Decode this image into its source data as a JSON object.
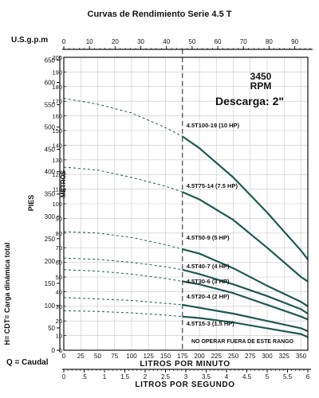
{
  "chart_data": {
    "type": "line",
    "title": "Curvas de Rendimiento Serie 4.5 T",
    "top_axis": {
      "label": "U.S.g.p.m",
      "ticks": [
        "0",
        "10",
        "20",
        "30",
        "40",
        "50",
        "60",
        "70",
        "80",
        "90"
      ],
      "values": [
        0,
        10,
        20,
        30,
        40,
        50,
        60,
        70,
        80,
        90
      ],
      "range": [
        0,
        95.1
      ]
    },
    "bottom_axis_lpm": {
      "label": "LITROS POR MINUTO",
      "ticks": [
        "0",
        "25",
        "50",
        "75",
        "100",
        "125",
        "150",
        "175",
        "200",
        "225",
        "250",
        "275",
        "300",
        "325",
        "350"
      ],
      "values": [
        0,
        25,
        50,
        75,
        100,
        125,
        150,
        175,
        200,
        225,
        250,
        275,
        300,
        325,
        350
      ],
      "range": [
        0,
        360
      ]
    },
    "bottom_axis_lps": {
      "label": "LITROS POR SEGUNDO",
      "ticks": [
        "0",
        ".5",
        "1",
        "1.5",
        "2",
        "2.5",
        "3",
        "3.5",
        "4",
        "4.5",
        "5",
        "5.5",
        "6"
      ],
      "values": [
        0,
        0.5,
        1,
        1.5,
        2,
        2.5,
        3,
        3.5,
        4,
        4.5,
        5,
        5.5,
        6
      ],
      "range": [
        0,
        6
      ]
    },
    "left_axis_pies": {
      "label": "PIES",
      "ticks": [
        "0",
        "50",
        "100",
        "150",
        "200",
        "250",
        "300",
        "350",
        "400",
        "450",
        "500",
        "550",
        "600",
        "650"
      ],
      "values": [
        0,
        50,
        100,
        150,
        200,
        250,
        300,
        350,
        400,
        450,
        500,
        550,
        600,
        650
      ],
      "range": [
        0,
        656.2
      ]
    },
    "left_axis_metros": {
      "label": "METROS",
      "ticks": [
        "0",
        "10",
        "20",
        "30",
        "40",
        "50",
        "60",
        "70",
        "80",
        "90",
        "100",
        "110",
        "120",
        "130",
        "140",
        "150",
        "160",
        "170",
        "180",
        "190",
        "200"
      ],
      "values": [
        0,
        10,
        20,
        30,
        40,
        50,
        60,
        70,
        80,
        90,
        100,
        110,
        120,
        130,
        140,
        150,
        160,
        170,
        180,
        190,
        200
      ],
      "range": [
        0,
        200
      ]
    },
    "side_labels": {
      "head": "H= CDT= Carga dinámica total",
      "flow": "Q = Caudal"
    },
    "annotations": {
      "speed": "3450",
      "speed_unit": "RPM",
      "discharge": "Descarga: 2\"",
      "no_operate": "NO OPERAR FUERA DE ESTE RANGO"
    },
    "operating_limit_lpm": 175,
    "series": [
      {
        "name": "4.5T100-19 (10 HP)",
        "x_lpm": [
          0,
          50,
          100,
          150,
          175,
          200,
          250,
          300,
          350,
          360
        ],
        "y_m": [
          172,
          168,
          162,
          152,
          146,
          138,
          118,
          94,
          68,
          62
        ]
      },
      {
        "name": "4.5T75-14 (7.5 HP)",
        "x_lpm": [
          0,
          50,
          100,
          150,
          175,
          200,
          250,
          300,
          350,
          360
        ],
        "y_m": [
          125,
          123,
          118,
          112,
          108,
          103,
          89,
          70,
          50,
          47
        ]
      },
      {
        "name": "4.5T50-9 (5 HP)",
        "x_lpm": [
          0,
          50,
          100,
          150,
          175,
          200,
          250,
          300,
          350,
          360
        ],
        "y_m": [
          81,
          80,
          77,
          72,
          69,
          66,
          56,
          44,
          33,
          30
        ]
      },
      {
        "name": "4.5T40-7 (4 HP)",
        "x_lpm": [
          0,
          50,
          100,
          150,
          175,
          200,
          250,
          300,
          350,
          360
        ],
        "y_m": [
          63,
          62,
          60,
          57,
          55,
          52,
          45,
          37,
          28,
          25
        ]
      },
      {
        "name": "4.5T30-6 (3 HP)",
        "x_lpm": [
          0,
          50,
          100,
          150,
          175,
          200,
          250,
          300,
          350,
          360
        ],
        "y_m": [
          55,
          54,
          52,
          49,
          47,
          45,
          39,
          31,
          23,
          21
        ]
      },
      {
        "name": "4.5T20-4 (2 HP)",
        "x_lpm": [
          0,
          50,
          100,
          150,
          175,
          200,
          250,
          300,
          350,
          360
        ],
        "y_m": [
          36,
          35,
          34,
          32,
          31,
          29,
          25,
          20,
          15,
          13
        ]
      },
      {
        "name": "4.5T15-3 (1.5 HP)",
        "x_lpm": [
          0,
          50,
          100,
          150,
          175,
          200,
          250,
          300,
          350,
          360
        ],
        "y_m": [
          27,
          26.5,
          25.5,
          24,
          23,
          22,
          19,
          15,
          11,
          9
        ]
      }
    ],
    "grid": true,
    "colors": {
      "curve": "#1e5a52",
      "grid": "#c8c8c8",
      "axis": "#111111"
    }
  }
}
